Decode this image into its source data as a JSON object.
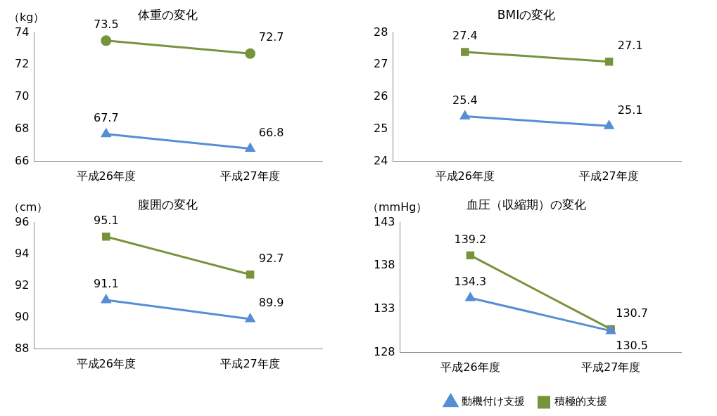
{
  "chart_data": [
    {
      "type": "line",
      "title": "体重の変化",
      "ylabel": "（kg）",
      "categories": [
        "平成26年度",
        "平成27年度"
      ],
      "ylim": [
        66,
        74
      ],
      "yticks": [
        66,
        68,
        70,
        72,
        74
      ],
      "grid": false,
      "legend": false,
      "data_labels": true,
      "line_style": "solid",
      "series": [
        {
          "color": "#558ed5",
          "marker": "triangle",
          "values": [
            67.7,
            66.8
          ]
        },
        {
          "color": "#77933c",
          "marker": "circle",
          "values": [
            73.5,
            72.7
          ]
        }
      ]
    },
    {
      "type": "line",
      "title": "BMIの変化",
      "categories": [
        "平成26年度",
        "平成27年度"
      ],
      "ylim": [
        24,
        28
      ],
      "yticks": [
        24,
        25,
        26,
        27,
        28
      ],
      "grid": false,
      "legend": false,
      "data_labels": true,
      "line_style": "solid",
      "series": [
        {
          "color": "#558ed5",
          "marker": "triangle",
          "values": [
            25.4,
            25.1
          ]
        },
        {
          "color": "#77933c",
          "marker": "square",
          "values": [
            27.4,
            27.1
          ]
        }
      ]
    },
    {
      "type": "line",
      "title": "腹囲の変化",
      "ylabel": "（cm）",
      "categories": [
        "平成26年度",
        "平成27年度"
      ],
      "ylim": [
        88,
        96
      ],
      "yticks": [
        88,
        90,
        92,
        94,
        96
      ],
      "grid": false,
      "legend": false,
      "data_labels": true,
      "line_style": "solid",
      "series": [
        {
          "color": "#558ed5",
          "marker": "triangle",
          "values": [
            91.1,
            89.9
          ]
        },
        {
          "color": "#77933c",
          "marker": "square",
          "values": [
            95.1,
            92.7
          ]
        }
      ]
    },
    {
      "type": "line",
      "title": "血圧（収縮期）の変化",
      "ylabel": "（mmHg）",
      "categories": [
        "平成26年度",
        "平成27年度"
      ],
      "ylim": [
        128,
        143
      ],
      "yticks": [
        128,
        133,
        138,
        143
      ],
      "grid": false,
      "legend": "bottom",
      "data_labels": true,
      "line_style": "solid",
      "series": [
        {
          "name": "動機付け支援",
          "color": "#558ed5",
          "marker": "triangle",
          "values": [
            134.3,
            130.5
          ]
        },
        {
          "name": "積極的支援",
          "color": "#77933c",
          "marker": "square",
          "values": [
            139.2,
            130.7
          ]
        }
      ]
    }
  ]
}
